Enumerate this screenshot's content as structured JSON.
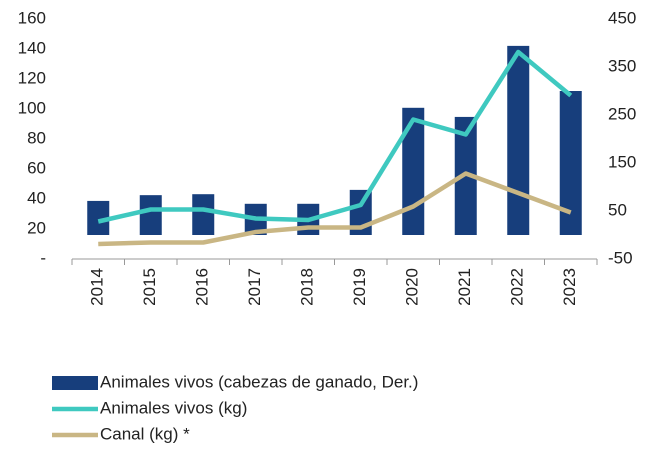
{
  "chart_data": {
    "type": "bar_line",
    "categories": [
      "2014",
      "2015",
      "2016",
      "2017",
      "2018",
      "2019",
      "2020",
      "2021",
      "2022",
      "2023"
    ],
    "series": [
      {
        "name": "Animales vivos (cabezas de ganado, Der.)",
        "type": "bar",
        "axis": "y2",
        "color": "#173e7c",
        "values": [
          71,
          83,
          85,
          65,
          65,
          94,
          265,
          246,
          394,
          300
        ]
      },
      {
        "name": "Animales vivos (kg)",
        "type": "line",
        "axis": "y",
        "color": "#3fc9c0",
        "values": [
          25,
          33,
          33,
          27,
          26,
          36,
          93,
          83,
          138,
          109
        ]
      },
      {
        "name": "Canal (kg) *",
        "type": "line",
        "axis": "y",
        "color": "#c9b684",
        "values": [
          10,
          11,
          11,
          18,
          21,
          21,
          35,
          57,
          44,
          31
        ]
      }
    ],
    "ylim": [
      0,
      160
    ],
    "yticks": [
      {
        "value": 0,
        "label": "-"
      },
      20,
      40,
      60,
      80,
      100,
      120,
      140,
      160
    ],
    "y2lim": [
      -50,
      450
    ],
    "y2ticks": [
      -50,
      50,
      150,
      250,
      350,
      450
    ],
    "grid": false,
    "legend": "bottom"
  }
}
